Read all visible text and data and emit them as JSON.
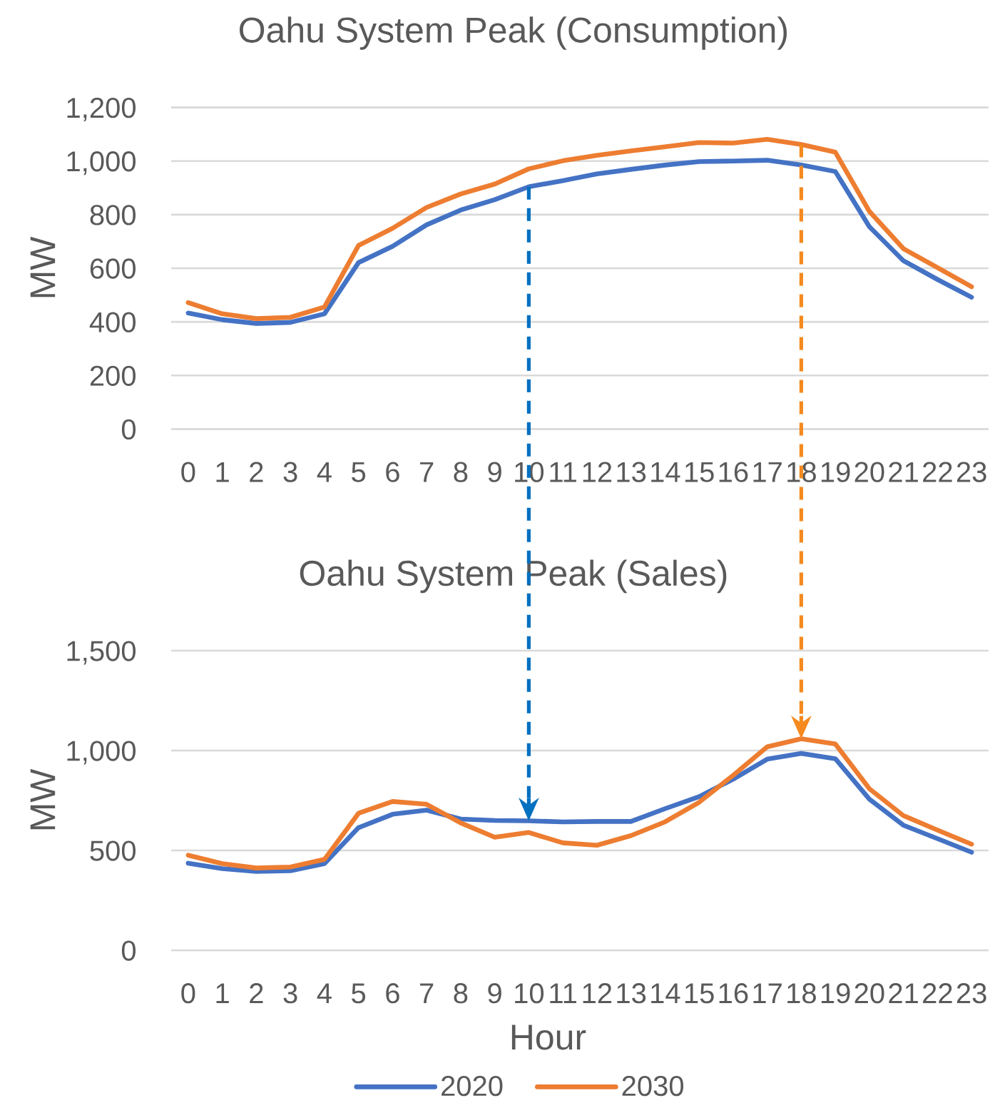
{
  "chart_data": [
    {
      "type": "line",
      "title": "Oahu System Peak (Consumption)",
      "ylabel": "MW",
      "categories": [
        "0",
        "1",
        "2",
        "3",
        "4",
        "5",
        "6",
        "7",
        "8",
        "9",
        "10",
        "11",
        "12",
        "13",
        "14",
        "15",
        "16",
        "17",
        "18",
        "19",
        "20",
        "21",
        "22",
        "23"
      ],
      "series": [
        {
          "color": "#4472c4",
          "values": [
            433,
            408,
            394,
            398,
            430,
            621,
            682,
            762,
            817,
            856,
            904,
            927,
            952,
            969,
            985,
            998,
            1000,
            1003,
            985,
            961,
            755,
            628,
            558,
            492
          ]
        },
        {
          "color": "#ed7d31",
          "values": [
            472,
            430,
            412,
            417,
            455,
            685,
            749,
            827,
            877,
            914,
            971,
            1001,
            1021,
            1038,
            1053,
            1069,
            1067,
            1081,
            1062,
            1033,
            812,
            673,
            602,
            531
          ]
        }
      ],
      "ylim": [
        0,
        1200
      ],
      "yticks": [
        0,
        200,
        400,
        600,
        800,
        {
          "value": 1000,
          "label": "1,000"
        },
        {
          "value": 1200,
          "label": "1,200"
        }
      ],
      "grid": "y",
      "ref_lines": [
        {
          "axis": "x",
          "value": "10",
          "color": "#0070c0",
          "line_style": "dashed"
        },
        {
          "axis": "x",
          "value": "18",
          "color": "#f58a1f",
          "line_style": "dashed"
        }
      ]
    },
    {
      "type": "line",
      "title": "Oahu System Peak (Sales)",
      "xlabel": "Hour",
      "ylabel": "MW",
      "categories": [
        "0",
        "1",
        "2",
        "3",
        "4",
        "5",
        "6",
        "7",
        "8",
        "9",
        "10",
        "11",
        "12",
        "13",
        "14",
        "15",
        "16",
        "17",
        "18",
        "19",
        "20",
        "21",
        "22",
        "23"
      ],
      "series": [
        {
          "name": "2020",
          "color": "#4472c4",
          "values": [
            436,
            409,
            395,
            398,
            434,
            614,
            681,
            702,
            657,
            650,
            648,
            643,
            645,
            645,
            709,
            769,
            857,
            957,
            986,
            959,
            757,
            626,
            559,
            491
          ]
        },
        {
          "name": "2030",
          "color": "#ed7d31",
          "values": [
            476,
            434,
            412,
            417,
            455,
            686,
            745,
            731,
            638,
            566,
            590,
            538,
            526,
            574,
            643,
            741,
            876,
            1019,
            1059,
            1033,
            809,
            674,
            602,
            531
          ]
        }
      ],
      "ylim": [
        0,
        1500
      ],
      "yticks": [
        0,
        500,
        {
          "value": 1000,
          "label": "1,000"
        },
        {
          "value": 1500,
          "label": "1,500"
        }
      ],
      "grid": "y",
      "legend": "bottom",
      "ref_lines": [
        {
          "axis": "x",
          "value": "10",
          "color": "#0070c0",
          "line_style": "dashed"
        },
        {
          "axis": "x",
          "value": "18",
          "color": "#f58a1f",
          "line_style": "dashed"
        }
      ]
    }
  ]
}
